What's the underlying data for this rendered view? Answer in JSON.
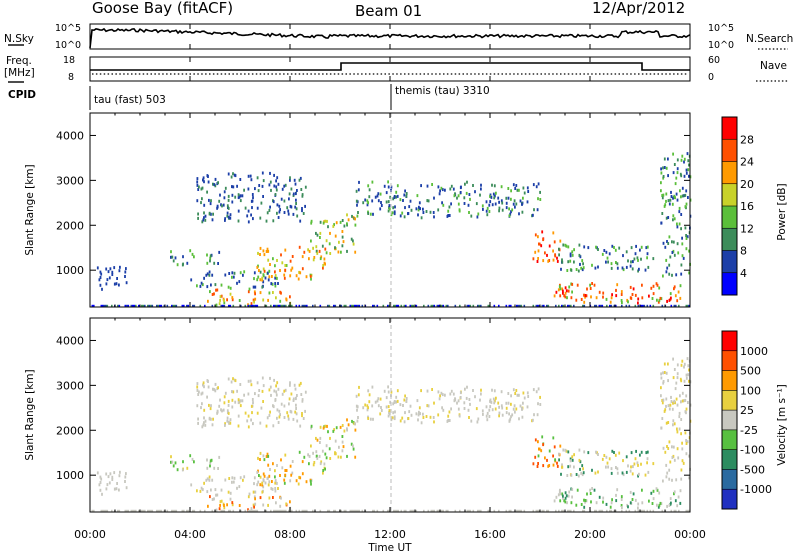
{
  "header": {
    "station": "Goose Bay (fitACF)",
    "beam": "Beam 01",
    "date": "12/Apr/2012"
  },
  "noise_panel": {
    "left_label": "N.Sky",
    "right_label": "N.Search",
    "y_ticks_left": [
      "10^5",
      "10^0"
    ],
    "y_ticks_right": [
      "10^5",
      "10^0"
    ]
  },
  "freq_panel": {
    "left_label_top": "Freq.",
    "left_label_unit": "[MHz]",
    "right_label": "Nave",
    "y_ticks_left": [
      "18",
      "8"
    ],
    "y_ticks_right": [
      "60",
      "0"
    ],
    "cpid_label": "CPID"
  },
  "cpid_segments": [
    {
      "label": "tau (fast) 503",
      "start_hour": 0
    },
    {
      "label": "themis (tau) 3310",
      "start_hour": 12
    }
  ],
  "chart_data": [
    {
      "type": "heatmap",
      "name": "power",
      "ylabel": "Slant Range [km]",
      "y_ticks": [
        1000,
        2000,
        3000,
        4000
      ],
      "ylim": [
        180,
        4500
      ],
      "colorbar_label": "Power [dB]",
      "colorbar_ticks": [
        "28",
        "24",
        "20",
        "16",
        "12",
        "8",
        "4"
      ],
      "colors": [
        "#0000ff",
        "#1c3fa8",
        "#3c8c5a",
        "#5bbf3a",
        "#c8d22a",
        "#ff9a00",
        "#ff5000",
        "#ff0000"
      ]
    },
    {
      "type": "heatmap",
      "name": "velocity",
      "ylabel": "Slant Range [km]",
      "y_ticks": [
        1000,
        2000,
        3000,
        4000
      ],
      "ylim": [
        180,
        4500
      ],
      "colorbar_label": "Velocity [m s⁻¹]",
      "colorbar_ticks": [
        "1000",
        "500",
        "100",
        "25",
        "-25",
        "-100",
        "-500",
        "-1000"
      ],
      "colors": [
        "#2030c0",
        "#2a6aa0",
        "#2c8c60",
        "#58c040",
        "#c8c8c0",
        "#e8d040",
        "#ff9a00",
        "#ff5000",
        "#ff0000"
      ]
    }
  ],
  "x_axis": {
    "label": "Time UT",
    "ticks": [
      "00:00",
      "04:00",
      "08:00",
      "12:00",
      "16:00",
      "20:00",
      "00:00"
    ]
  }
}
